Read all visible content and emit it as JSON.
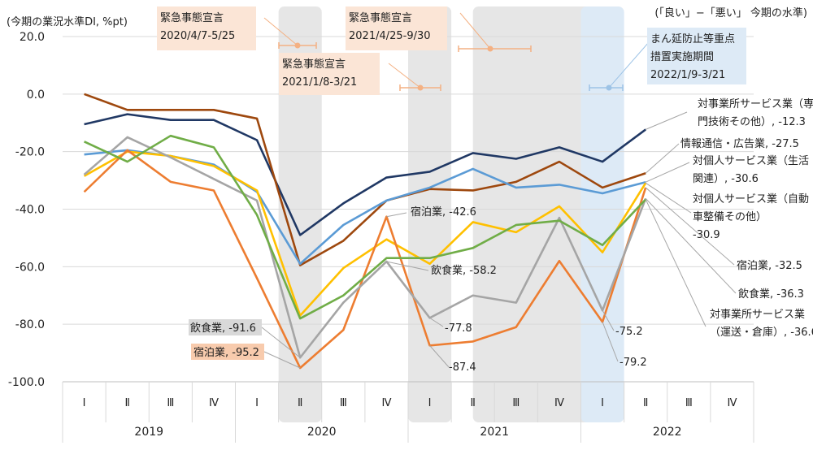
{
  "chart_data": {
    "type": "line",
    "unit_label": "(今期の業況水準DI, %pt)",
    "top_right_note": "(「良い」−「悪い」 今期の水準)",
    "ylim": [
      -100,
      20
    ],
    "y_ticks": [
      "20.0",
      "0.0",
      "-20.0",
      "-40.0",
      "-60.0",
      "-80.0",
      "-100.0"
    ],
    "categories": [
      "Ⅰ",
      "Ⅱ",
      "Ⅲ",
      "Ⅳ",
      "Ⅰ",
      "Ⅱ",
      "Ⅲ",
      "Ⅳ",
      "Ⅰ",
      "Ⅱ",
      "Ⅲ",
      "Ⅳ",
      "Ⅰ",
      "Ⅱ",
      "Ⅲ",
      "Ⅳ"
    ],
    "years": [
      "2019",
      "2020",
      "2021",
      "2022"
    ],
    "grid": true,
    "shaded_periods": [
      {
        "start": 5,
        "end": 5,
        "color": "#e6e6e6"
      },
      {
        "start": 8,
        "end": 8,
        "color": "#e6e6e6"
      },
      {
        "start": 9.5,
        "end": 11.5,
        "color": "#e6e6e6"
      },
      {
        "start": 12,
        "end": 12,
        "color": "#ddeaf6"
      }
    ],
    "period_boxes": [
      {
        "lines": [
          "緊急事態宣言",
          "2020/4/7-5/25"
        ],
        "color": "#fbe5d6"
      },
      {
        "lines": [
          "緊急事態宣言",
          "2021/1/8-3/21"
        ],
        "color": "#fbe5d6"
      },
      {
        "lines": [
          "緊急事態宣言",
          "2021/4/25-9/30"
        ],
        "color": "#fbe5d6"
      },
      {
        "lines": [
          "まん延防止等重点",
          "措置実施期間",
          "2022/1/9-3/21"
        ],
        "color": "#ddeaf6"
      }
    ],
    "series": [
      {
        "name": "対事業所サービス業（専門技術その他）",
        "color": "#203864",
        "values": [
          -10.5,
          -7.0,
          -9.0,
          -9.0,
          -16.0,
          -49.0,
          -38.0,
          -29.0,
          -27.0,
          -20.5,
          -22.5,
          -18.5,
          -23.5,
          -12.3,
          null,
          null
        ]
      },
      {
        "name": "情報通信・広告業",
        "color": "#9e480e",
        "values": [
          0.0,
          -5.5,
          -5.5,
          -5.5,
          -8.5,
          -59.5,
          -51.0,
          -37.0,
          -33.0,
          -33.5,
          -30.5,
          -23.5,
          -32.5,
          -27.5,
          null,
          null
        ]
      },
      {
        "name": "対個人サービス業（生活関連）",
        "color": "#5b9bd5",
        "values": [
          -21.0,
          -19.5,
          -21.5,
          -24.5,
          -34.0,
          -59.0,
          -45.5,
          -37.0,
          -32.5,
          -26.0,
          -32.5,
          -31.5,
          -34.5,
          -30.6,
          null,
          null
        ]
      },
      {
        "name": "対個人サービス業（自動車整備その他）",
        "color": "#ffc000",
        "values": [
          -28.5,
          -20.0,
          -21.5,
          -25.0,
          -33.5,
          -77.0,
          -60.5,
          -50.5,
          -59.0,
          -44.5,
          -48.0,
          -39.0,
          -55.0,
          -30.9,
          null,
          null
        ]
      },
      {
        "name": "宿泊業",
        "color": "#ed7d31",
        "values": [
          -34.0,
          -19.5,
          -30.5,
          -33.5,
          -64.0,
          -95.2,
          -82.0,
          -42.6,
          -87.4,
          -86.0,
          -81.0,
          -58.0,
          -79.2,
          -32.5,
          null,
          null
        ]
      },
      {
        "name": "飲食業",
        "color": "#a5a5a5",
        "values": [
          -28.0,
          -15.0,
          -22.0,
          -29.5,
          -37.0,
          -91.6,
          -72.5,
          -58.2,
          -77.8,
          -70.0,
          -72.5,
          -43.0,
          -75.2,
          -36.3,
          null,
          null
        ]
      },
      {
        "name": "対事業所サービス業（運送・倉庫）",
        "color": "#70ad47",
        "values": [
          -16.5,
          -23.5,
          -14.5,
          -18.5,
          -42.0,
          -78.0,
          -70.0,
          -57.0,
          -57.0,
          -53.5,
          -45.5,
          -44.0,
          -52.5,
          -36.6,
          null,
          null
        ]
      }
    ],
    "right_labels": [
      {
        "lines": [
          "対事業所サービス業（専",
          "門技術その他）, -12.3"
        ]
      },
      {
        "lines": [
          "情報通信・広告業, -27.5"
        ]
      },
      {
        "lines": [
          "対個人サービス業（生活",
          "関連）, -30.6"
        ]
      },
      {
        "lines": [
          "対個人サービス業（自動",
          "車整備その他）",
          "-30.9"
        ]
      },
      {
        "lines": [
          "宿泊業, -32.5"
        ]
      },
      {
        "lines": [
          "飲食業, -36.3"
        ]
      },
      {
        "lines": [
          "対事業所サービス業",
          "（運送・倉庫）, -36.6"
        ]
      }
    ],
    "annotations": [
      {
        "text": "飲食業, -91.6",
        "bg": "#d9d9d9"
      },
      {
        "text": "宿泊業, -95.2",
        "bg": "#f8cbad"
      },
      {
        "text": "宿泊業, -42.6",
        "bg": "none"
      },
      {
        "text": "飲食業, -58.2",
        "bg": "none"
      },
      {
        "text": "-77.8",
        "bg": "none"
      },
      {
        "text": "-87.4",
        "bg": "none"
      },
      {
        "text": "-75.2",
        "bg": "none"
      },
      {
        "text": "-79.2",
        "bg": "none"
      }
    ]
  }
}
